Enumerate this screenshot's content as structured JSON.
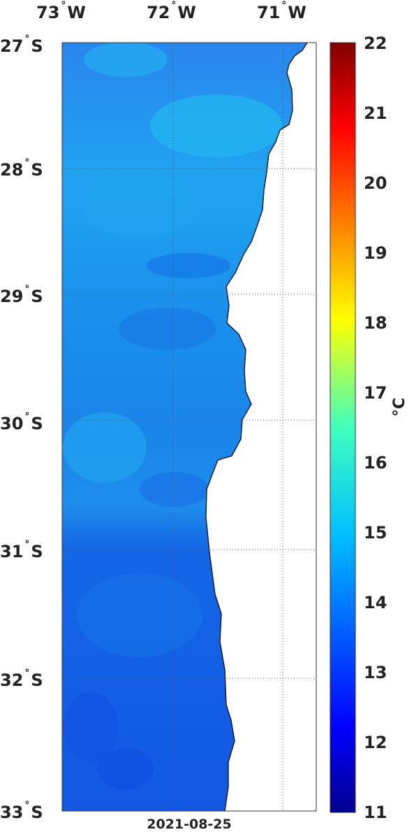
{
  "map": {
    "date": "2021-08-25",
    "lon_labels": [
      {
        "deg": "73",
        "hem": "W"
      },
      {
        "deg": "72",
        "hem": "W"
      },
      {
        "deg": "71",
        "hem": "W"
      }
    ],
    "lat_labels": [
      {
        "deg": "27",
        "hem": "S"
      },
      {
        "deg": "28",
        "hem": "S"
      },
      {
        "deg": "29",
        "hem": "S"
      },
      {
        "deg": "30",
        "hem": "S"
      },
      {
        "deg": "31",
        "hem": "S"
      },
      {
        "deg": "32",
        "hem": "S"
      },
      {
        "deg": "33",
        "hem": "S"
      }
    ],
    "degree_symbol": "°",
    "variable": "sea surface temperature",
    "ocean_color": "#1f6ee8",
    "land_color": "#ffffff",
    "grid": "dotted"
  },
  "colorbar": {
    "unit": "°C",
    "ticks": [
      "22",
      "21",
      "20",
      "19",
      "18",
      "17",
      "16",
      "15",
      "14",
      "13",
      "12",
      "11"
    ],
    "range": [
      11,
      22
    ],
    "colormap": "jet"
  }
}
